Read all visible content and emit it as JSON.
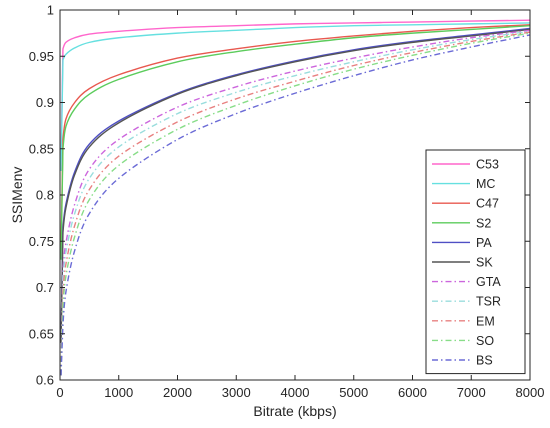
{
  "chart_data": {
    "type": "line",
    "xlabel": "Bitrate (kbps)",
    "ylabel": "SSIMenv",
    "xlim": [
      0,
      8000
    ],
    "ylim": [
      0.6,
      1.0
    ],
    "xticks": [
      0,
      1000,
      2000,
      3000,
      4000,
      5000,
      6000,
      7000,
      8000
    ],
    "yticks": [
      0.6,
      0.65,
      0.7,
      0.75,
      0.8,
      0.85,
      0.9,
      0.95,
      1.0
    ],
    "xtick_labels": [
      "0",
      "1000",
      "2000",
      "3000",
      "4000",
      "5000",
      "6000",
      "7000",
      "8000"
    ],
    "ytick_labels": [
      "0.6",
      "0.65",
      "0.7",
      "0.75",
      "0.8",
      "0.85",
      "0.9",
      "0.95",
      "1"
    ],
    "grid": false,
    "legend_position": "right",
    "x": [
      50,
      100,
      250,
      500,
      1000,
      2000,
      3000,
      4000,
      5000,
      6000,
      7000,
      8000
    ],
    "series": [
      {
        "name": "C53",
        "color": "#ff66cc",
        "style": "solid",
        "values": [
          0.958,
          0.965,
          0.97,
          0.974,
          0.977,
          0.981,
          0.983,
          0.985,
          0.986,
          0.987,
          0.988,
          0.989
        ]
      },
      {
        "name": "MC",
        "color": "#66e0e0",
        "style": "solid",
        "values": [
          0.946,
          0.952,
          0.959,
          0.965,
          0.97,
          0.975,
          0.978,
          0.981,
          0.983,
          0.984,
          0.985,
          0.986
        ]
      },
      {
        "name": "C47",
        "color": "#e8584f",
        "style": "solid",
        "values": [
          0.86,
          0.882,
          0.9,
          0.915,
          0.93,
          0.948,
          0.958,
          0.966,
          0.972,
          0.977,
          0.981,
          0.984
        ]
      },
      {
        "name": "S2",
        "color": "#5ccc5c",
        "style": "solid",
        "values": [
          0.85,
          0.874,
          0.893,
          0.909,
          0.925,
          0.944,
          0.955,
          0.963,
          0.97,
          0.975,
          0.979,
          0.983
        ]
      },
      {
        "name": "PA",
        "color": "#4f4fc4",
        "style": "solid",
        "values": [
          0.765,
          0.79,
          0.825,
          0.855,
          0.88,
          0.91,
          0.93,
          0.945,
          0.957,
          0.966,
          0.973,
          0.98
        ]
      },
      {
        "name": "SK",
        "color": "#555555",
        "style": "solid",
        "values": [
          0.76,
          0.786,
          0.822,
          0.852,
          0.878,
          0.909,
          0.929,
          0.944,
          0.956,
          0.965,
          0.972,
          0.979
        ]
      },
      {
        "name": "GTA",
        "color": "#cc66dd",
        "style": "dashdot",
        "values": [
          0.72,
          0.748,
          0.79,
          0.828,
          0.86,
          0.895,
          0.917,
          0.934,
          0.948,
          0.96,
          0.97,
          0.978
        ]
      },
      {
        "name": "TSR",
        "color": "#99dddd",
        "style": "dashdot",
        "values": [
          0.71,
          0.738,
          0.78,
          0.818,
          0.852,
          0.888,
          0.911,
          0.929,
          0.944,
          0.957,
          0.968,
          0.977
        ]
      },
      {
        "name": "EM",
        "color": "#e88080",
        "style": "dashdot",
        "values": [
          0.695,
          0.725,
          0.767,
          0.806,
          0.842,
          0.879,
          0.904,
          0.923,
          0.94,
          0.954,
          0.966,
          0.976
        ]
      },
      {
        "name": "SO",
        "color": "#88dd88",
        "style": "dashdot",
        "values": [
          0.68,
          0.712,
          0.755,
          0.795,
          0.832,
          0.871,
          0.897,
          0.918,
          0.936,
          0.951,
          0.964,
          0.975
        ]
      },
      {
        "name": "BS",
        "color": "#6b6bd6",
        "style": "dashdot",
        "values": [
          0.66,
          0.695,
          0.74,
          0.78,
          0.818,
          0.86,
          0.888,
          0.91,
          0.929,
          0.946,
          0.96,
          0.973
        ]
      }
    ]
  }
}
